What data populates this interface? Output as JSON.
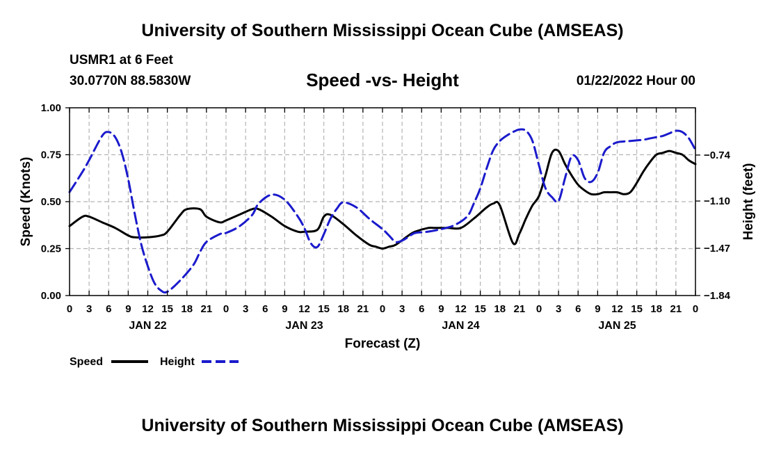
{
  "header": {
    "title_top": "University of Southern Mississippi Ocean Cube (AMSEAS)",
    "station": "USMR1 at 6 Feet",
    "coords": "30.0770N  88.5830W",
    "datetime": "01/22/2022 Hour 00",
    "title_bottom": "University of Southern Mississippi Ocean Cube (AMSEAS)"
  },
  "legend": {
    "speed_label": "Speed",
    "height_label": "Height"
  },
  "colors": {
    "speed": "#000000",
    "height": "#1a1acc",
    "grid": "#b4b4b4"
  },
  "chart_data": {
    "type": "line",
    "title": "Speed -vs- Height",
    "xlabel": "Forecast (Z)",
    "ylabel_left": "Speed (Knots)",
    "ylabel_right": "Height (feet)",
    "x_unit": "hours since 01/22/2022 00Z",
    "xlim": [
      0,
      96
    ],
    "ylim_left": [
      0,
      1
    ],
    "ylim_right": [
      -1.84,
      -0.37
    ],
    "yticks_left": [
      0,
      0.25,
      0.5,
      0.75,
      1.0
    ],
    "ytick_labels_left": [
      "0.00",
      "0.25",
      "0.50",
      "0.75",
      "1.00"
    ],
    "yticks_right": [
      -1.84,
      -1.47,
      -1.1,
      -0.74
    ],
    "ytick_labels_right": [
      "−1.84",
      "−1.47",
      "−1.10",
      "−0.74"
    ],
    "xtick_labels": [
      "0",
      "3",
      "6",
      "9",
      "12",
      "15",
      "18",
      "21",
      "0",
      "3",
      "6",
      "9",
      "12",
      "15",
      "18",
      "21",
      "0",
      "3",
      "6",
      "9",
      "12",
      "15",
      "18",
      "21",
      "0",
      "3",
      "6",
      "9",
      "12",
      "15",
      "18",
      "21",
      "0"
    ],
    "day_labels": [
      {
        "label": "JAN 22",
        "x": 12
      },
      {
        "label": "JAN 23",
        "x": 36
      },
      {
        "label": "JAN 24",
        "x": 60
      },
      {
        "label": "JAN 25",
        "x": 84
      }
    ],
    "grid": true,
    "series": [
      {
        "name": "Speed",
        "axis": "left",
        "style": "solid",
        "x": [
          0,
          2,
          3,
          5,
          7,
          9,
          10,
          12,
          14,
          15,
          17,
          18,
          20,
          21,
          23,
          24,
          26,
          28,
          29,
          31,
          33,
          35,
          36,
          38,
          39,
          40,
          42,
          44,
          46,
          47,
          48,
          49,
          50,
          52,
          53,
          55,
          56,
          58,
          60,
          62,
          63,
          64,
          65,
          66,
          68,
          69,
          70,
          71,
          72,
          73,
          74,
          75,
          76,
          77,
          78,
          79,
          80,
          81,
          82,
          83,
          84,
          85,
          86,
          87,
          88,
          89,
          90,
          91,
          92,
          93,
          94,
          95,
          96
        ],
        "values": [
          0.37,
          0.42,
          0.42,
          0.39,
          0.36,
          0.32,
          0.31,
          0.31,
          0.32,
          0.34,
          0.43,
          0.46,
          0.46,
          0.42,
          0.39,
          0.4,
          0.43,
          0.46,
          0.46,
          0.42,
          0.37,
          0.34,
          0.34,
          0.35,
          0.42,
          0.43,
          0.38,
          0.32,
          0.27,
          0.26,
          0.25,
          0.26,
          0.27,
          0.32,
          0.34,
          0.36,
          0.36,
          0.36,
          0.36,
          0.41,
          0.44,
          0.47,
          0.49,
          0.48,
          0.28,
          0.33,
          0.41,
          0.48,
          0.53,
          0.64,
          0.76,
          0.77,
          0.7,
          0.64,
          0.59,
          0.56,
          0.54,
          0.54,
          0.55,
          0.55,
          0.55,
          0.54,
          0.55,
          0.6,
          0.66,
          0.71,
          0.75,
          0.76,
          0.77,
          0.76,
          0.75,
          0.72,
          0.7
        ]
      },
      {
        "name": "Height",
        "axis": "right",
        "style": "dashed",
        "x": [
          0,
          2,
          3,
          5,
          6,
          7,
          8,
          9,
          10,
          11,
          12,
          13,
          14,
          15,
          17,
          19,
          20,
          21,
          23,
          24,
          26,
          28,
          29,
          31,
          33,
          35,
          36,
          37,
          38,
          39,
          40,
          41,
          42,
          44,
          46,
          48,
          49,
          50,
          51,
          52,
          53,
          55,
          57,
          59,
          61,
          62,
          63,
          64,
          65,
          66,
          67,
          68,
          69,
          70,
          71,
          72,
          73,
          74,
          75,
          76,
          77,
          78,
          79,
          80,
          81,
          82,
          83,
          84,
          86,
          88,
          89,
          90,
          91,
          92,
          93,
          94,
          95,
          96
        ],
        "values": [
          -1.03,
          -0.87,
          -0.78,
          -0.59,
          -0.56,
          -0.6,
          -0.72,
          -0.93,
          -1.2,
          -1.44,
          -1.61,
          -1.74,
          -1.8,
          -1.81,
          -1.72,
          -1.6,
          -1.5,
          -1.42,
          -1.36,
          -1.35,
          -1.3,
          -1.21,
          -1.12,
          -1.05,
          -1.09,
          -1.22,
          -1.31,
          -1.43,
          -1.46,
          -1.36,
          -1.24,
          -1.16,
          -1.11,
          -1.15,
          -1.24,
          -1.32,
          -1.37,
          -1.42,
          -1.41,
          -1.38,
          -1.35,
          -1.34,
          -1.32,
          -1.29,
          -1.22,
          -1.12,
          -1.0,
          -0.84,
          -0.7,
          -0.63,
          -0.59,
          -0.56,
          -0.54,
          -0.55,
          -0.63,
          -0.82,
          -1.0,
          -1.07,
          -1.1,
          -0.92,
          -0.75,
          -0.78,
          -0.92,
          -0.95,
          -0.88,
          -0.72,
          -0.67,
          -0.64,
          -0.63,
          -0.62,
          -0.61,
          -0.6,
          -0.59,
          -0.57,
          -0.55,
          -0.56,
          -0.61,
          -0.7
        ]
      }
    ]
  }
}
